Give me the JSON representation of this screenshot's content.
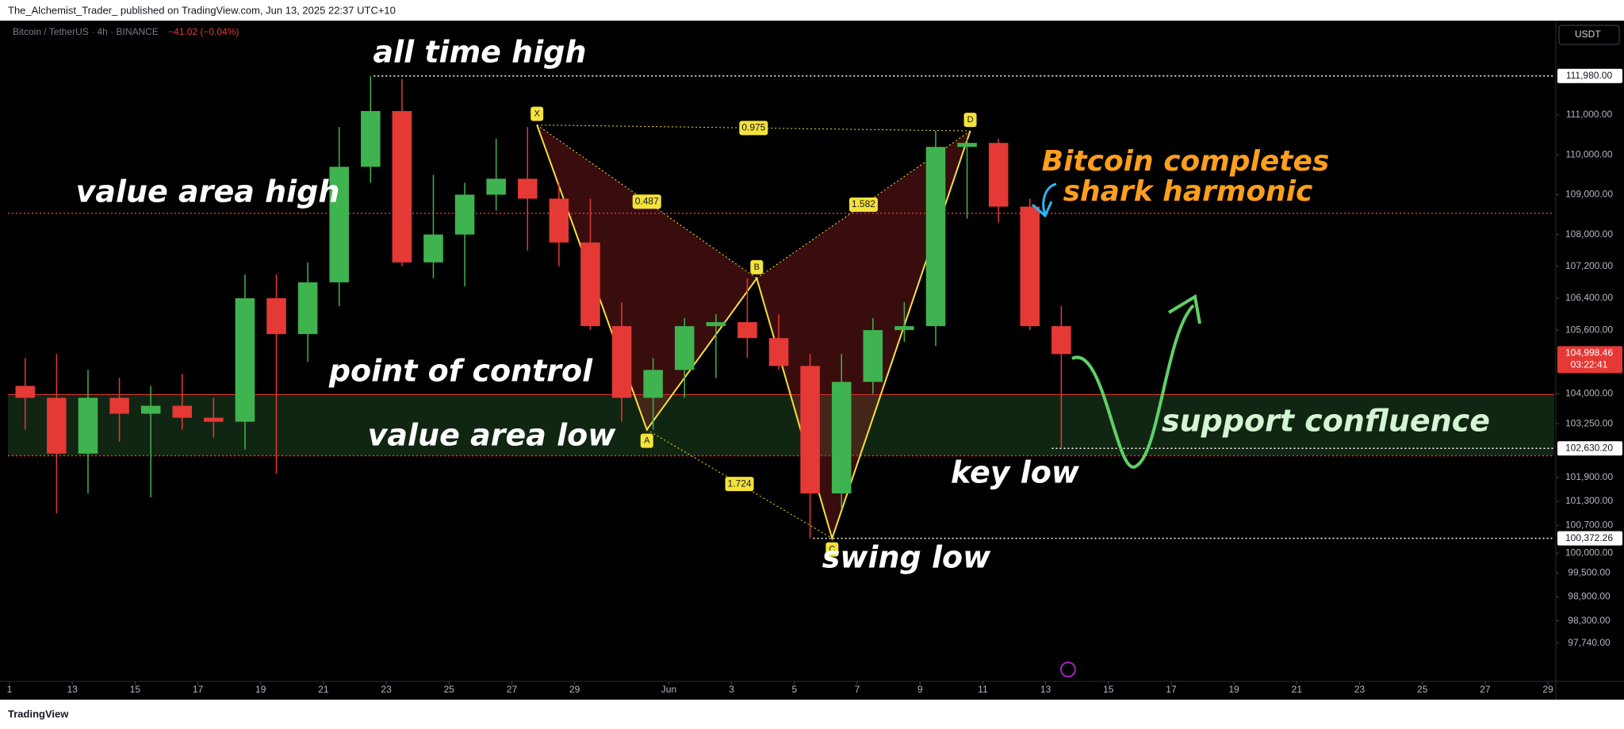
{
  "header": {
    "publisher": "The_Alchemist_Trader_ published on TradingView.com, Jun 13, 2025 22:37 UTC+10",
    "brand": "TradingView"
  },
  "chart_data": {
    "type": "candlestick",
    "symbol": "Bitcoin / TetherUS · 4h · BINANCE",
    "change": "−41.02 (−0.04%)",
    "currency": "USDT",
    "xlim": [
      10.95,
      60.2
    ],
    "xticks": [
      {
        "value": 11,
        "label": "1"
      },
      13,
      15,
      17,
      19,
      21,
      23,
      25,
      27,
      29,
      {
        "value": 32,
        "label": "Jun"
      },
      {
        "value": 34,
        "label": "3"
      },
      {
        "value": 36,
        "label": "5"
      },
      {
        "value": 38,
        "label": "7"
      },
      {
        "value": 40,
        "label": "9"
      },
      {
        "value": 42,
        "label": "11"
      },
      {
        "value": 44,
        "label": "13"
      },
      {
        "value": 46,
        "label": "15"
      },
      {
        "value": 48,
        "label": "17"
      },
      {
        "value": 50,
        "label": "19"
      },
      {
        "value": 52,
        "label": "21"
      },
      {
        "value": 54,
        "label": "23"
      },
      {
        "value": 56,
        "label": "25"
      },
      {
        "value": 58,
        "label": "27"
      },
      {
        "value": 60,
        "label": "29"
      }
    ],
    "ylim": [
      96800,
      113370
    ],
    "yticks": [
      {
        "value": 111000,
        "label": "111,000.00"
      },
      {
        "value": 110000,
        "label": "110,000.00"
      },
      {
        "value": 109000,
        "label": "109,000.00"
      },
      {
        "value": 108000,
        "label": "108,000.00"
      },
      {
        "value": 107200,
        "label": "107,200.00"
      },
      {
        "value": 106400,
        "label": "106,400.00"
      },
      {
        "value": 105600,
        "label": "105,600.00"
      },
      {
        "value": 104000,
        "label": "104,000.00"
      },
      {
        "value": 103250,
        "label": "103,250.00"
      },
      {
        "value": 101900,
        "label": "101,900.00"
      },
      {
        "value": 101300,
        "label": "101,300.00"
      },
      {
        "value": 100700,
        "label": "100,700.00"
      },
      {
        "value": 100000,
        "label": "100,000.00"
      },
      {
        "value": 99500,
        "label": "99,500.00"
      },
      {
        "value": 98900,
        "label": "98,900.00"
      },
      {
        "value": 98300,
        "label": "98,300.00"
      },
      {
        "value": 97740,
        "label": "97,740.00"
      }
    ],
    "up_color": "#3fb34f",
    "down_color": "#e53935",
    "candles": [
      {
        "x": 11,
        "o": 104200,
        "h": 104900,
        "l": 103100,
        "c": 103900
      },
      {
        "x": 12,
        "o": 103900,
        "h": 105000,
        "l": 101000,
        "c": 102500
      },
      {
        "x": 13,
        "o": 102500,
        "h": 104600,
        "l": 101500,
        "c": 103900
      },
      {
        "x": 14,
        "o": 103900,
        "h": 104400,
        "l": 102800,
        "c": 103500
      },
      {
        "x": 15,
        "o": 103500,
        "h": 104200,
        "l": 101400,
        "c": 103700
      },
      {
        "x": 16,
        "o": 103700,
        "h": 104500,
        "l": 103100,
        "c": 103400
      },
      {
        "x": 17,
        "o": 103400,
        "h": 103900,
        "l": 102900,
        "c": 103300
      },
      {
        "x": 18,
        "o": 103300,
        "h": 107000,
        "l": 102600,
        "c": 106400
      },
      {
        "x": 19,
        "o": 106400,
        "h": 107000,
        "l": 102000,
        "c": 105500
      },
      {
        "x": 20,
        "o": 105500,
        "h": 107300,
        "l": 104800,
        "c": 106800
      },
      {
        "x": 21,
        "o": 106800,
        "h": 110700,
        "l": 106200,
        "c": 109700
      },
      {
        "x": 22,
        "o": 109700,
        "h": 111980,
        "l": 109300,
        "c": 111100
      },
      {
        "x": 23,
        "o": 111100,
        "h": 111900,
        "l": 107200,
        "c": 107300
      },
      {
        "x": 24,
        "o": 107300,
        "h": 109500,
        "l": 106900,
        "c": 108000
      },
      {
        "x": 25,
        "o": 108000,
        "h": 109300,
        "l": 106700,
        "c": 109000
      },
      {
        "x": 26,
        "o": 109000,
        "h": 110400,
        "l": 108600,
        "c": 109400
      },
      {
        "x": 27,
        "o": 109400,
        "h": 110700,
        "l": 107600,
        "c": 108900
      },
      {
        "x": 28,
        "o": 108900,
        "h": 109300,
        "l": 107200,
        "c": 107800
      },
      {
        "x": 29,
        "o": 107800,
        "h": 108900,
        "l": 105600,
        "c": 105700
      },
      {
        "x": 30,
        "o": 105700,
        "h": 106300,
        "l": 103300,
        "c": 103900
      },
      {
        "x": 31,
        "o": 103900,
        "h": 104900,
        "l": 103100,
        "c": 104600
      },
      {
        "x": 32,
        "o": 104600,
        "h": 105900,
        "l": 103900,
        "c": 105700
      },
      {
        "x": 33,
        "o": 105700,
        "h": 106000,
        "l": 104400,
        "c": 105800
      },
      {
        "x": 34,
        "o": 105800,
        "h": 106900,
        "l": 104900,
        "c": 105400
      },
      {
        "x": 35,
        "o": 105400,
        "h": 106000,
        "l": 104600,
        "c": 104700
      },
      {
        "x": 36,
        "o": 104700,
        "h": 105000,
        "l": 100372,
        "c": 101500
      },
      {
        "x": 37,
        "o": 101500,
        "h": 105000,
        "l": 101100,
        "c": 104300
      },
      {
        "x": 38,
        "o": 104300,
        "h": 105900,
        "l": 104000,
        "c": 105600
      },
      {
        "x": 39,
        "o": 105600,
        "h": 106300,
        "l": 105300,
        "c": 105700
      },
      {
        "x": 40,
        "o": 105700,
        "h": 110600,
        "l": 105200,
        "c": 110200
      },
      {
        "x": 41,
        "o": 110200,
        "h": 110400,
        "l": 108400,
        "c": 110300
      },
      {
        "x": 42,
        "o": 110300,
        "h": 110400,
        "l": 108300,
        "c": 108700
      },
      {
        "x": 43,
        "o": 108700,
        "h": 108900,
        "l": 105600,
        "c": 105700
      },
      {
        "x": 44,
        "o": 105700,
        "h": 106200,
        "l": 102630,
        "c": 104998
      }
    ],
    "price_levels": [
      {
        "label": "all time high",
        "value": 111980,
        "value_label": "111,980.00",
        "from": 22.6
      },
      {
        "label": "key low",
        "value": 102630.2,
        "value_label": "102,630.20",
        "from": 44.2
      },
      {
        "label": "swing low",
        "value": 100372.26,
        "value_label": "100,372.26",
        "from": 36.6
      }
    ],
    "value_area_high": {
      "label": "value area high",
      "value": 108530
    },
    "point_of_control": {
      "label": "point of control",
      "value": 103980
    },
    "value_area_low": {
      "label": "value area low",
      "value": 102445
    },
    "support_zone": {
      "label": "support confluence"
    },
    "last_price": {
      "value": 104998.46,
      "label": "104,998.46",
      "countdown": "03:22:41"
    },
    "pattern": {
      "title": [
        "Bitcoin completes",
        "shark harmonic"
      ],
      "points": [
        {
          "label": "X",
          "x": 27.8,
          "price": 110750
        },
        {
          "label": "A",
          "x": 31.3,
          "price": 103100
        },
        {
          "label": "B",
          "x": 34.8,
          "price": 106900
        },
        {
          "label": "C",
          "x": 37.2,
          "price": 100372
        },
        {
          "label": "D",
          "x": 41.6,
          "price": 110600
        }
      ],
      "ratios": {
        "XD": 0.975,
        "XB": 0.487,
        "BD": 1.582,
        "AC": 1.724
      }
    }
  }
}
